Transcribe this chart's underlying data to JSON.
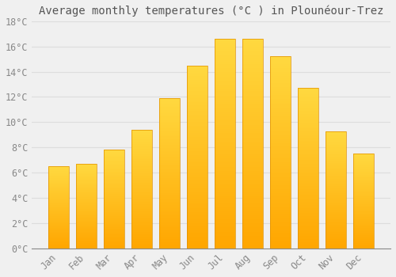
{
  "title": "Average monthly temperatures (°C ) in Plounéour-Trez",
  "months": [
    "Jan",
    "Feb",
    "Mar",
    "Apr",
    "May",
    "Jun",
    "Jul",
    "Aug",
    "Sep",
    "Oct",
    "Nov",
    "Dec"
  ],
  "temperatures": [
    6.5,
    6.7,
    7.8,
    9.4,
    11.9,
    14.5,
    16.6,
    16.6,
    15.2,
    12.7,
    9.3,
    7.5
  ],
  "bar_color_top": "#FFD060",
  "bar_color_bottom": "#FFA500",
  "bar_edge_color": "#E09000",
  "background_color": "#F0F0F0",
  "grid_color": "#DDDDDD",
  "text_color": "#888888",
  "axis_color": "#888888",
  "ylim": [
    0,
    18
  ],
  "yticks": [
    0,
    2,
    4,
    6,
    8,
    10,
    12,
    14,
    16,
    18
  ],
  "title_fontsize": 10,
  "tick_fontsize": 8.5,
  "bar_width": 0.75
}
